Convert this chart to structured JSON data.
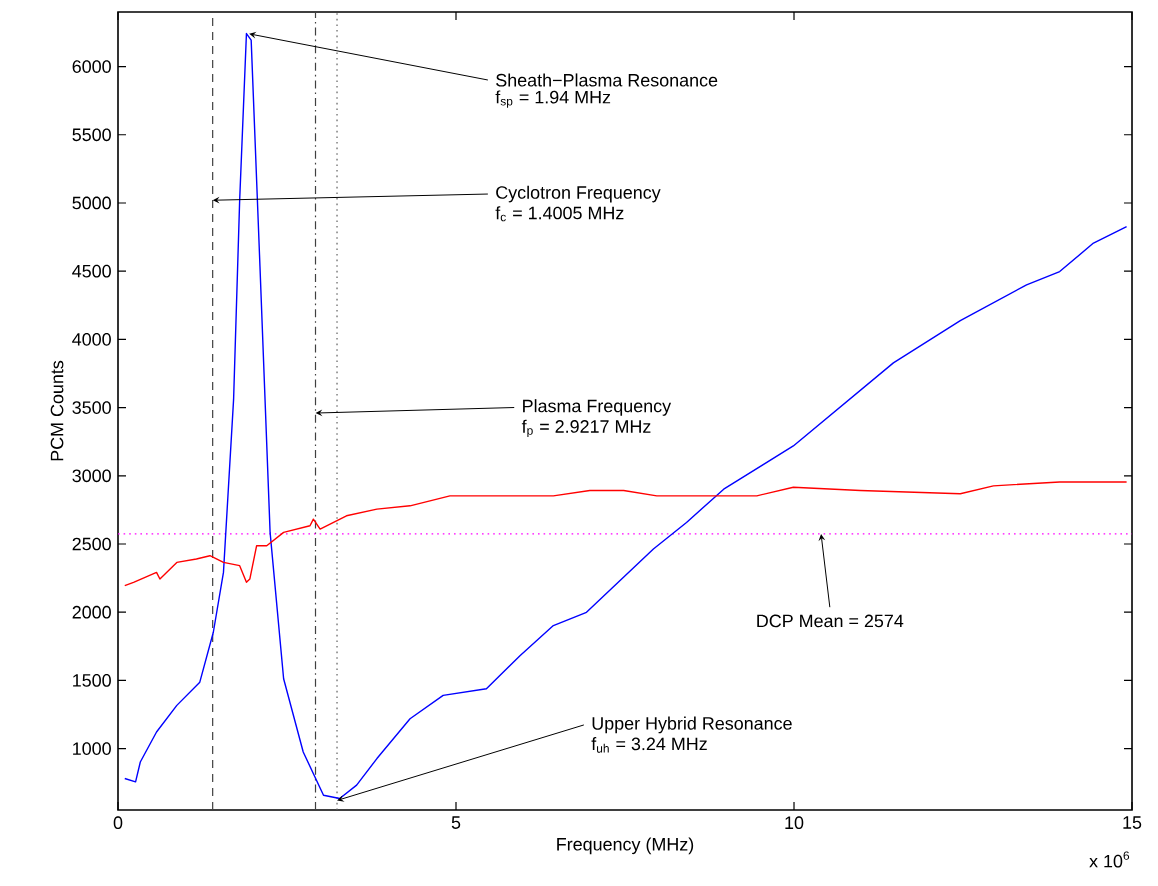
{
  "chart_data": {
    "type": "line",
    "xlabel": "Frequency (MHz)",
    "ylabel": "PCM Counts",
    "xlim": [
      0,
      15
    ],
    "ylim": [
      550,
      6400
    ],
    "xticks": [
      0,
      5,
      10,
      15
    ],
    "yticks": [
      1000,
      1500,
      2000,
      2500,
      3000,
      3500,
      4000,
      4500,
      5000,
      5500,
      6000
    ],
    "series": [
      {
        "color": "#0000ff",
        "x": [
          0.1,
          0.26,
          0.33,
          0.57,
          0.87,
          1.21,
          1.41,
          1.56,
          1.71,
          1.8,
          1.9,
          1.97,
          2.1,
          2.25,
          2.45,
          2.74,
          3.04,
          3.28,
          3.53,
          3.83,
          4.32,
          4.81,
          5.45,
          5.95,
          6.44,
          6.93,
          7.92,
          8.41,
          8.96,
          9.99,
          11.47,
          12.46,
          13.44,
          13.93,
          14.43,
          14.92
        ],
        "values": [
          781,
          756,
          902,
          1122,
          1317,
          1487,
          1853,
          2292,
          3560,
          5023,
          6242,
          6194,
          4536,
          2585,
          1512,
          975,
          658,
          634,
          732,
          927,
          1219,
          1390,
          1439,
          1683,
          1902,
          1999,
          2463,
          2658,
          2902,
          3219,
          3828,
          4137,
          4400,
          4497,
          4706,
          4827
        ]
      },
      {
        "color": "#ff0000",
        "x": [
          0.1,
          0.23,
          0.57,
          0.62,
          0.87,
          1.16,
          1.36,
          1.56,
          1.8,
          1.9,
          1.95,
          2.05,
          2.2,
          2.45,
          2.84,
          2.89,
          2.99,
          3.38,
          3.83,
          4.32,
          4.91,
          5.8,
          6.44,
          6.98,
          7.48,
          7.97,
          9.45,
          9.99,
          10.98,
          12.46,
          12.95,
          13.93,
          14.92
        ],
        "values": [
          2195,
          2219,
          2292,
          2243,
          2365,
          2390,
          2414,
          2365,
          2341,
          2219,
          2243,
          2487,
          2487,
          2585,
          2634,
          2682,
          2609,
          2707,
          2756,
          2780,
          2853,
          2853,
          2853,
          2892,
          2892,
          2853,
          2853,
          2916,
          2892,
          2868,
          2926,
          2955,
          2955
        ]
      }
    ],
    "ref_lines": [
      {
        "axis": "x",
        "value": 1.4005,
        "color": "#404040",
        "line_style": "dashed"
      },
      {
        "axis": "x",
        "value": 2.9217,
        "color": "#404040",
        "line_style": "dashdot"
      },
      {
        "axis": "x",
        "value": 3.24,
        "color": "#606060",
        "line_style": "dotted"
      },
      {
        "axis": "y",
        "value": 2574,
        "color": "#ff00ff",
        "line_style": "dotted"
      }
    ],
    "annotations": [
      "x 10$^{6}$",
      {
        "text": "Sheath−Plasma Resonance",
        "x": 1.94,
        "y": 6240
      },
      "f$_{sp}$ = 1.94 MHz",
      {
        "text": "Cyclotron Frequency",
        "x": 1.4005,
        "y": 5020
      },
      "f$_{c}$ = 1.4005 MHz",
      {
        "text": "Plasma Frequency",
        "x": 2.9217,
        "y": 3460
      },
      "f$_{p}$ = 2.9217 MHz",
      {
        "text": "Upper Hybrid Resonance",
        "x": 3.24,
        "y": 620
      },
      "f$_{uh}$ = 3.24 MHz",
      {
        "text": "DCP Mean = 2574",
        "x": 10.4,
        "y": 2574
      }
    ]
  }
}
